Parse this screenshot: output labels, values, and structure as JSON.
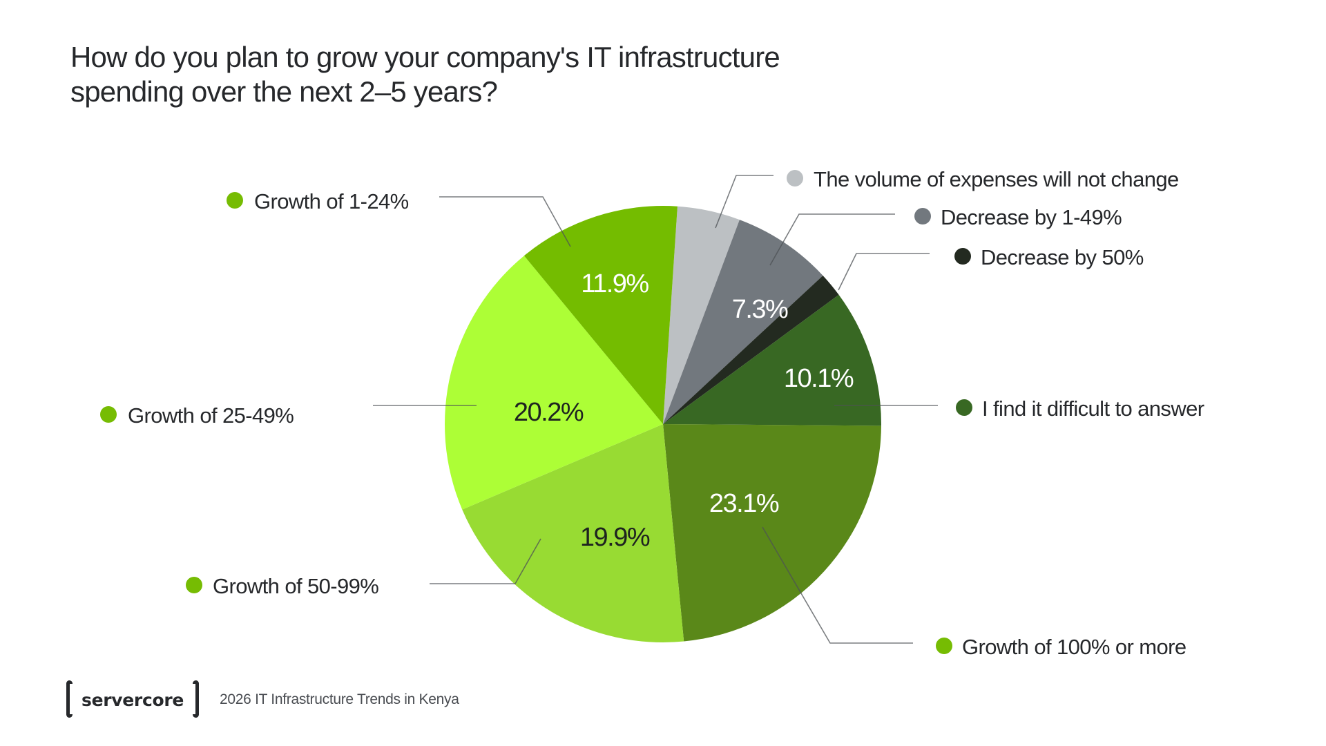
{
  "title": {
    "line1": "How do you plan to grow your company's IT infrastructure",
    "line2": "spending over the next 2–5 years?"
  },
  "footer": {
    "brand": "servercore",
    "report": "2026 IT Infrastructure Trends in Kenya"
  },
  "chart_data": {
    "type": "pie",
    "title": "How do you plan to grow your company's IT infrastructure spending over the next 2–5 years?",
    "start_angle_deg": 3.8,
    "direction": "clockwise",
    "slices": [
      {
        "key": "no-change",
        "label": "The volume of expenses will not change",
        "value": 4.6,
        "value_label": "",
        "color": "#BCC0C3",
        "legend_color": "#BCC0C3",
        "label_color": "#FFFFFF"
      },
      {
        "key": "decrease-1-49",
        "label": "Decrease by 1-49%",
        "value": 7.3,
        "value_label": "7.3%",
        "color": "#72787E",
        "legend_color": "#72787E",
        "label_color": "#FFFFFF"
      },
      {
        "key": "decrease-50",
        "label": "Decrease by 50%",
        "value": 1.8,
        "value_label": "",
        "color": "#232A20",
        "legend_color": "#232A20",
        "label_color": "#FFFFFF"
      },
      {
        "key": "difficult",
        "label": "I find it difficult to answer",
        "value": 10.1,
        "value_label": "10.1%",
        "color": "#386823",
        "legend_color": "#386823",
        "label_color": "#FFFFFF"
      },
      {
        "key": "growth-100",
        "label": "Growth of 100% or more",
        "value": 23.1,
        "value_label": "23.1%",
        "color": "#5A8819",
        "legend_color": "#76BC03",
        "label_color": "#FFFFFF"
      },
      {
        "key": "growth-50-99",
        "label": "Growth of 50-99%",
        "value": 19.9,
        "value_label": "19.9%",
        "color": "#98DB33",
        "legend_color": "#76BC03",
        "label_color": "#1E2320"
      },
      {
        "key": "growth-25-49",
        "label": "Growth of 25-49%",
        "value": 20.2,
        "value_label": "20.2%",
        "color": "#ADFE36",
        "legend_color": "#76BC03",
        "label_color": "#1E2320"
      },
      {
        "key": "growth-1-24",
        "label": "Growth of 1-24%",
        "value": 11.9,
        "value_label": "11.9%",
        "color": "#74BC00",
        "legend_color": "#76BC03",
        "label_color": "#FFFFFF"
      }
    ],
    "legend_placement": "callouts-around-pie"
  }
}
